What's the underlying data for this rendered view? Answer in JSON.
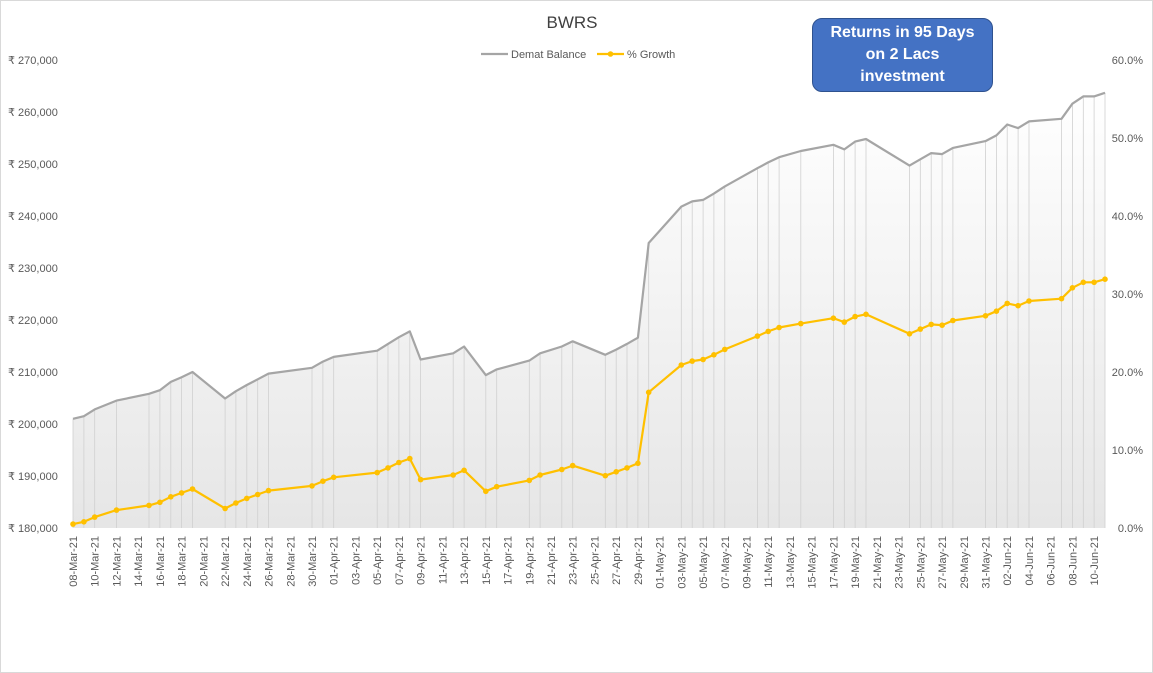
{
  "chart_data": {
    "type": "line",
    "title": "BWRS",
    "callout": "Returns in 95 Days\non 2 Lacs\ninvestment",
    "legend_placement": "top-center",
    "grid": false,
    "drop_lines": true,
    "gradient_fill": true,
    "x_tick_labels": [
      "08-Mar-21",
      "10-Mar-21",
      "12-Mar-21",
      "14-Mar-21",
      "16-Mar-21",
      "18-Mar-21",
      "20-Mar-21",
      "22-Mar-21",
      "24-Mar-21",
      "26-Mar-21",
      "28-Mar-21",
      "30-Mar-21",
      "01-Apr-21",
      "03-Apr-21",
      "05-Apr-21",
      "07-Apr-21",
      "09-Apr-21",
      "11-Apr-21",
      "13-Apr-21",
      "15-Apr-21",
      "17-Apr-21",
      "19-Apr-21",
      "21-Apr-21",
      "23-Apr-21",
      "25-Apr-21",
      "27-Apr-21",
      "29-Apr-21",
      "01-May-21",
      "03-May-21",
      "05-May-21",
      "07-May-21",
      "09-May-21",
      "11-May-21",
      "13-May-21",
      "15-May-21",
      "17-May-21",
      "19-May-21",
      "21-May-21",
      "23-May-21",
      "25-May-21",
      "27-May-21",
      "29-May-21",
      "31-May-21",
      "02-Jun-21",
      "04-Jun-21",
      "06-Jun-21",
      "08-Jun-21",
      "10-Jun-21"
    ],
    "x_start": "08-Mar-21",
    "y_left": {
      "min": 180000,
      "max": 270000,
      "step": 10000,
      "tick_labels": [
        "₹ 180,000",
        "₹ 190,000",
        "₹ 200,000",
        "₹ 210,000",
        "₹ 220,000",
        "₹ 230,000",
        "₹ 240,000",
        "₹ 250,000",
        "₹ 260,000",
        "₹ 270,000"
      ]
    },
    "y_right": {
      "min": 0,
      "max": 60,
      "step": 10,
      "tick_labels": [
        "0.0%",
        "10.0%",
        "20.0%",
        "30.0%",
        "40.0%",
        "50.0%",
        "60.0%"
      ]
    },
    "series": [
      {
        "name": "Demat Balance",
        "color": "#a5a5a5",
        "axis": "left",
        "markers": false,
        "points": [
          [
            "08-Mar-21",
            201000
          ],
          [
            "09-Mar-21",
            201500
          ],
          [
            "10-Mar-21",
            202800
          ],
          [
            "12-Mar-21",
            204500
          ],
          [
            "15-Mar-21",
            205800
          ],
          [
            "16-Mar-21",
            206500
          ],
          [
            "17-Mar-21",
            208100
          ],
          [
            "18-Mar-21",
            209000
          ],
          [
            "19-Mar-21",
            210000
          ],
          [
            "22-Mar-21",
            204900
          ],
          [
            "23-Mar-21",
            206300
          ],
          [
            "24-Mar-21",
            207500
          ],
          [
            "25-Mar-21",
            208600
          ],
          [
            "26-Mar-21",
            209700
          ],
          [
            "30-Mar-21",
            210800
          ],
          [
            "31-Mar-21",
            212000
          ],
          [
            "01-Apr-21",
            212900
          ],
          [
            "05-Apr-21",
            214100
          ],
          [
            "06-Apr-21",
            215400
          ],
          [
            "07-Apr-21",
            216700
          ],
          [
            "08-Apr-21",
            217800
          ],
          [
            "09-Apr-21",
            212400
          ],
          [
            "12-Apr-21",
            213600
          ],
          [
            "13-Apr-21",
            214900
          ],
          [
            "15-Apr-21",
            209400
          ],
          [
            "16-Apr-21",
            210500
          ],
          [
            "19-Apr-21",
            212200
          ],
          [
            "20-Apr-21",
            213600
          ],
          [
            "22-Apr-21",
            214900
          ],
          [
            "23-Apr-21",
            215900
          ],
          [
            "26-Apr-21",
            213300
          ],
          [
            "27-Apr-21",
            214300
          ],
          [
            "28-Apr-21",
            215400
          ],
          [
            "29-Apr-21",
            216600
          ],
          [
            "30-Apr-21",
            234800
          ],
          [
            "03-May-21",
            241800
          ],
          [
            "04-May-21",
            242800
          ],
          [
            "05-May-21",
            243100
          ],
          [
            "06-May-21",
            244300
          ],
          [
            "07-May-21",
            245700
          ],
          [
            "10-May-21",
            249200
          ],
          [
            "11-May-21",
            250300
          ],
          [
            "12-May-21",
            251300
          ],
          [
            "14-May-21",
            252500
          ],
          [
            "17-May-21",
            253700
          ],
          [
            "18-May-21",
            252800
          ],
          [
            "19-May-21",
            254300
          ],
          [
            "20-May-21",
            254800
          ],
          [
            "24-May-21",
            249700
          ],
          [
            "25-May-21",
            250900
          ],
          [
            "26-May-21",
            252100
          ],
          [
            "27-May-21",
            251900
          ],
          [
            "28-May-21",
            253100
          ],
          [
            "31-May-21",
            254400
          ],
          [
            "01-Jun-21",
            255500
          ],
          [
            "02-Jun-21",
            257600
          ],
          [
            "03-Jun-21",
            256900
          ],
          [
            "04-Jun-21",
            258200
          ],
          [
            "07-Jun-21",
            258700
          ],
          [
            "08-Jun-21",
            261600
          ],
          [
            "09-Jun-21",
            263000
          ],
          [
            "10-Jun-21",
            263000
          ],
          [
            "11-Jun-21",
            263700
          ]
        ]
      },
      {
        "name": "% Growth",
        "color": "#ffc000",
        "axis": "right",
        "markers": true,
        "points": [
          [
            "08-Mar-21",
            0.5
          ],
          [
            "09-Mar-21",
            0.8
          ],
          [
            "10-Mar-21",
            1.4
          ],
          [
            "12-Mar-21",
            2.3
          ],
          [
            "15-Mar-21",
            2.9
          ],
          [
            "16-Mar-21",
            3.3
          ],
          [
            "17-Mar-21",
            4.0
          ],
          [
            "18-Mar-21",
            4.5
          ],
          [
            "19-Mar-21",
            5.0
          ],
          [
            "22-Mar-21",
            2.5
          ],
          [
            "23-Mar-21",
            3.2
          ],
          [
            "24-Mar-21",
            3.8
          ],
          [
            "25-Mar-21",
            4.3
          ],
          [
            "26-Mar-21",
            4.8
          ],
          [
            "30-Mar-21",
            5.4
          ],
          [
            "31-Mar-21",
            6.0
          ],
          [
            "01-Apr-21",
            6.5
          ],
          [
            "05-Apr-21",
            7.1
          ],
          [
            "06-Apr-21",
            7.7
          ],
          [
            "07-Apr-21",
            8.4
          ],
          [
            "08-Apr-21",
            8.9
          ],
          [
            "09-Apr-21",
            6.2
          ],
          [
            "12-Apr-21",
            6.8
          ],
          [
            "13-Apr-21",
            7.4
          ],
          [
            "15-Apr-21",
            4.7
          ],
          [
            "16-Apr-21",
            5.3
          ],
          [
            "19-Apr-21",
            6.1
          ],
          [
            "20-Apr-21",
            6.8
          ],
          [
            "22-Apr-21",
            7.5
          ],
          [
            "23-Apr-21",
            8.0
          ],
          [
            "26-Apr-21",
            6.7
          ],
          [
            "27-Apr-21",
            7.2
          ],
          [
            "28-Apr-21",
            7.7
          ],
          [
            "29-Apr-21",
            8.3
          ],
          [
            "30-Apr-21",
            17.4
          ],
          [
            "03-May-21",
            20.9
          ],
          [
            "04-May-21",
            21.4
          ],
          [
            "05-May-21",
            21.6
          ],
          [
            "06-May-21",
            22.2
          ],
          [
            "07-May-21",
            22.9
          ],
          [
            "10-May-21",
            24.6
          ],
          [
            "11-May-21",
            25.2
          ],
          [
            "12-May-21",
            25.7
          ],
          [
            "14-May-21",
            26.2
          ],
          [
            "17-May-21",
            26.9
          ],
          [
            "18-May-21",
            26.4
          ],
          [
            "19-May-21",
            27.1
          ],
          [
            "20-May-21",
            27.4
          ],
          [
            "24-May-21",
            24.9
          ],
          [
            "25-May-21",
            25.5
          ],
          [
            "26-May-21",
            26.1
          ],
          [
            "27-May-21",
            26.0
          ],
          [
            "28-May-21",
            26.6
          ],
          [
            "31-May-21",
            27.2
          ],
          [
            "01-Jun-21",
            27.8
          ],
          [
            "02-Jun-21",
            28.8
          ],
          [
            "03-Jun-21",
            28.5
          ],
          [
            "04-Jun-21",
            29.1
          ],
          [
            "07-Jun-21",
            29.4
          ],
          [
            "08-Jun-21",
            30.8
          ],
          [
            "09-Jun-21",
            31.5
          ],
          [
            "10-Jun-21",
            31.5
          ],
          [
            "11-Jun-21",
            31.9
          ]
        ]
      }
    ]
  }
}
